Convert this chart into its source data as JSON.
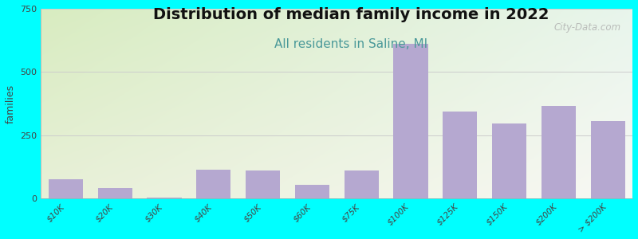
{
  "title": "Distribution of median family income in 2022",
  "subtitle": "All residents in Saline, MI",
  "ylabel": "families",
  "categories": [
    "$10K",
    "$20K",
    "$30K",
    "$40K",
    "$50K",
    "$60K",
    "$75K",
    "$100K",
    "$125K",
    "$150K",
    "$200K",
    "> $200K"
  ],
  "values": [
    75,
    40,
    5,
    115,
    110,
    55,
    110,
    610,
    345,
    295,
    365,
    305
  ],
  "bar_color": "#b5a8d0",
  "background_color": "#00ffff",
  "plot_bg_top_left": "#d8ecc0",
  "plot_bg_top_right": "#e8f5ec",
  "plot_bg_bottom_left": "#e8f0d8",
  "plot_bg_bottom_right": "#f8f8f4",
  "ylim": [
    0,
    750
  ],
  "yticks": [
    0,
    250,
    500,
    750
  ],
  "title_fontsize": 14,
  "subtitle_fontsize": 11,
  "ylabel_fontsize": 9,
  "watermark_text": "City-Data.com",
  "grid_color": "#cccccc",
  "title_color": "#111111",
  "subtitle_color": "#4a9999"
}
